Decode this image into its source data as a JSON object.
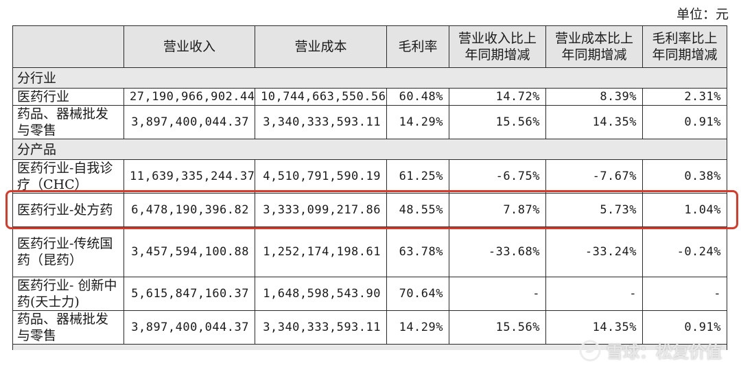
{
  "unit_label": "单位：元",
  "headers": [
    "",
    "营业收入",
    "营业成本",
    "毛利率",
    "营业收入比上年同期增减",
    "营业成本比上年同期增减",
    "毛利率比上年同期增减"
  ],
  "header_lines": [
    [
      ""
    ],
    [
      "营业收入"
    ],
    [
      "营业成本"
    ],
    [
      "毛利率"
    ],
    [
      "营业收入比上",
      "年同期增减"
    ],
    [
      "营业成本比上",
      "年同期增减"
    ],
    [
      "毛利率比上",
      "年同期增减"
    ]
  ],
  "sections": [
    {
      "title": "分行业",
      "rows": [
        {
          "name": "医药行业",
          "revenue": "27,190,966,902.44",
          "cost": "10,744,663,550.56",
          "margin": "60.48%",
          "rev_change": "14.72%",
          "cost_change": "8.39%",
          "margin_change": "2.31%"
        },
        {
          "name": "药品、器械批发与零售",
          "revenue": "3,897,400,044.37",
          "cost": "3,340,333,593.11",
          "margin": "14.29%",
          "rev_change": "15.56%",
          "cost_change": "14.35%",
          "margin_change": "0.91%"
        }
      ]
    },
    {
      "title": "分产品",
      "rows": [
        {
          "name": "医药行业-自我诊疗（CHC）",
          "revenue": "11,639,335,244.37",
          "cost": "4,510,791,590.19",
          "margin": "61.25%",
          "rev_change": "-6.75%",
          "cost_change": "-7.67%",
          "margin_change": "0.38%"
        },
        {
          "name": "医药行业-处方药",
          "revenue": "6,478,190,396.82",
          "cost": "3,333,099,217.86",
          "margin": "48.55%",
          "rev_change": "7.87%",
          "cost_change": "5.73%",
          "margin_change": "1.04%"
        },
        {
          "name": "医药行业-传统国药（昆药）",
          "revenue": "3,457,594,100.88",
          "cost": "1,252,174,198.61",
          "margin": "63.78%",
          "rev_change": "-33.68%",
          "cost_change": "-33.24%",
          "margin_change": "-0.24%"
        },
        {
          "name": "医药行业- 创新中药(天士力)",
          "revenue": "5,615,847,160.37",
          "cost": "1,648,598,543.90",
          "margin": "70.64%",
          "rev_change": "-",
          "cost_change": "-",
          "margin_change": "-"
        },
        {
          "name": "药品、器械批发与零售",
          "revenue": "3,897,400,044.37",
          "cost": "3,340,333,593.11",
          "margin": "14.29%",
          "rev_change": "15.56%",
          "cost_change": "14.35%",
          "margin_change": "0.91%"
        }
      ]
    }
  ],
  "watermark": {
    "text": "雪球：松复价值",
    "icon": "snowball-logo-icon"
  },
  "colors": {
    "highlight": "#d83a2a",
    "header_bg": "#e4e4e4"
  }
}
